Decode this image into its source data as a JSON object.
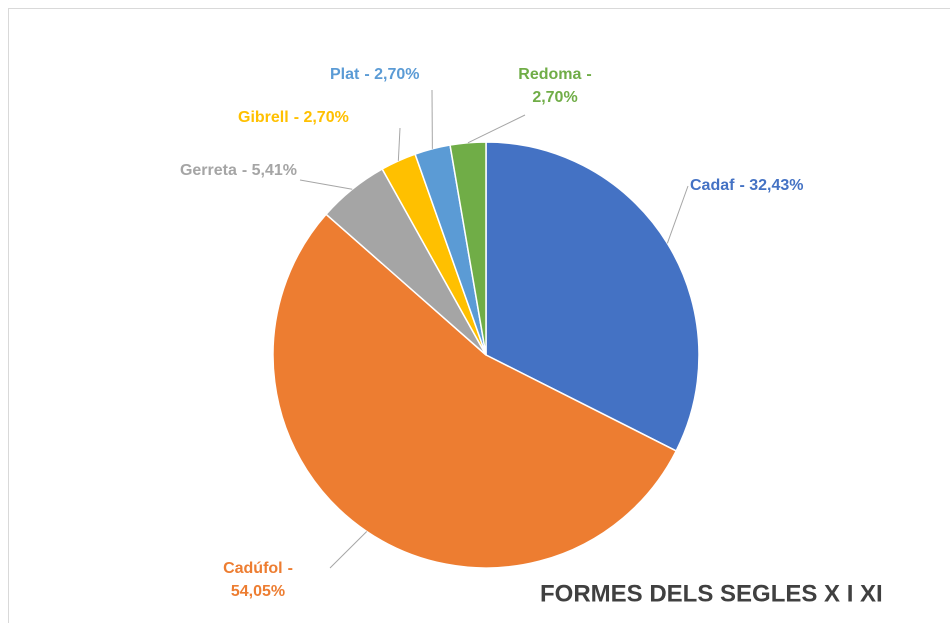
{
  "chart_data": {
    "type": "pie",
    "title": "FORMES DELS SEGLES X I XI",
    "categories": [
      "Cadaf",
      "Cadúfol",
      "Gerreta",
      "Gibrell",
      "Plat",
      "Redoma"
    ],
    "values": [
      32.43,
      54.05,
      5.41,
      2.7,
      2.7,
      2.7
    ],
    "value_labels": [
      "- 32,43%",
      "- 54,05%",
      "- 5,41%",
      "- 2,70%",
      "- 2,70%",
      "- 2,70%"
    ],
    "colors": [
      "#4472c4",
      "#ed7d31",
      "#a5a5a5",
      "#ffc000",
      "#5b9bd5",
      "#70ad47"
    ]
  }
}
